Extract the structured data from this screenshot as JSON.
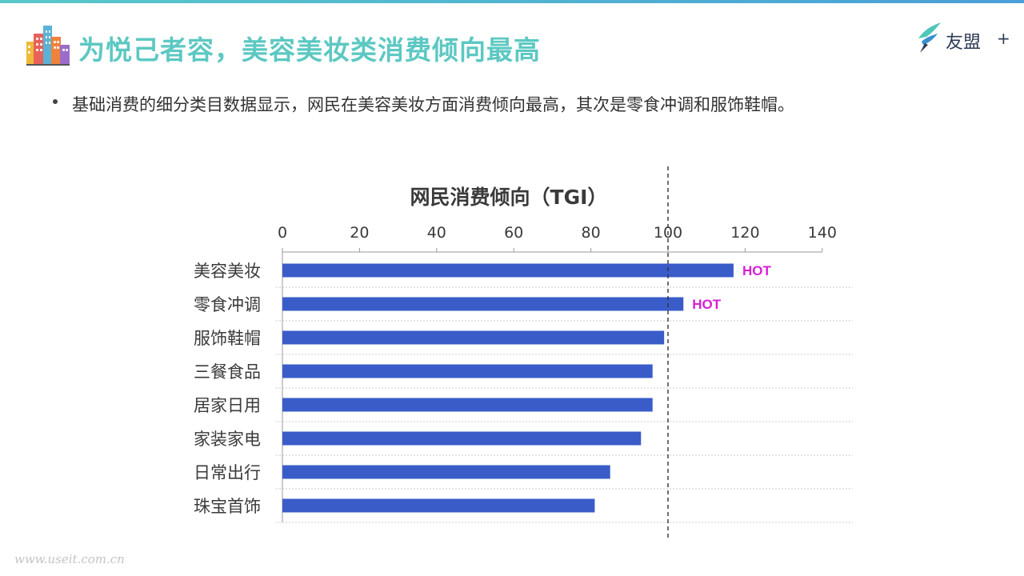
{
  "header": {
    "title": "为悦己者容，美容美妆类消费倾向最高",
    "logo_text": "友盟",
    "logo_plus": "+"
  },
  "bullet": {
    "text": "基础消费的细分类目数据显示，网民在美容美妆方面消费倾向最高，其次是零食冲调和服饰鞋帽。"
  },
  "watermark": "www.useit.com.cn",
  "icons": {
    "header_icon": "city-buildings-icon",
    "logo_icon": "umeng-bird-icon"
  },
  "colors": {
    "title": "#5cc8c2",
    "bar": "#3a5cc9",
    "hot": "#d61fd6",
    "reference_line": "#333333"
  },
  "chart_data": {
    "type": "bar",
    "orientation": "horizontal",
    "title": "网民消费倾向（TGI）",
    "xlabel": "",
    "ylabel": "",
    "xlim": [
      0,
      140
    ],
    "ticks": [
      0,
      20,
      40,
      60,
      80,
      100,
      120,
      140
    ],
    "reference_line": 100,
    "axis_position": "top",
    "grid": false,
    "categories": [
      "美容美妆",
      "零食冲调",
      "服饰鞋帽",
      "三餐食品",
      "居家日用",
      "家装家电",
      "日常出行",
      "珠宝首饰"
    ],
    "values": [
      117,
      104,
      99,
      96,
      96,
      93,
      85,
      81
    ],
    "annotations": [
      "HOT",
      "HOT",
      "",
      "",
      "",
      "",
      "",
      ""
    ]
  }
}
